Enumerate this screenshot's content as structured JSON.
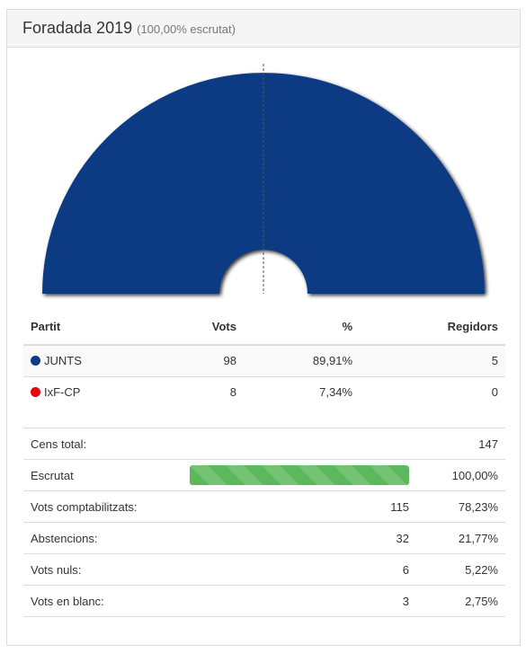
{
  "header": {
    "title": "Foradada 2019",
    "subtitle": "(100,00% escrutat)"
  },
  "table": {
    "headers": {
      "party": "Partit",
      "votes": "Vots",
      "percent": "%",
      "seats": "Regidors"
    },
    "rows": [
      {
        "party": "JUNTS",
        "color": "#0c3a83",
        "votes": "98",
        "percent": "89,91%",
        "seats": "5"
      },
      {
        "party": "IxF-CP",
        "color": "#e30613",
        "votes": "8",
        "percent": "7,34%",
        "seats": "0"
      }
    ]
  },
  "summary": {
    "census": {
      "label": "Cens total:",
      "value": "147"
    },
    "counted": {
      "label": "Escrutat",
      "progress": 100,
      "percent": "100,00%"
    },
    "valid_votes": {
      "label": "Vots comptabilitzats:",
      "value": "115",
      "percent": "78,23%"
    },
    "abstentions": {
      "label": "Abstencions:",
      "value": "32",
      "percent": "21,77%"
    },
    "null_votes": {
      "label": "Vots nuls:",
      "value": "6",
      "percent": "5,22%"
    },
    "blank_votes": {
      "label": "Vots en blanc:",
      "value": "3",
      "percent": "2,75%"
    }
  },
  "chart_data": {
    "type": "pie",
    "variant": "parliament-half-donut",
    "categories": [
      "JUNTS",
      "IxF-CP"
    ],
    "values": [
      5,
      0
    ],
    "colors": [
      "#0c3a83",
      "#e30613"
    ],
    "majority_line": true
  }
}
